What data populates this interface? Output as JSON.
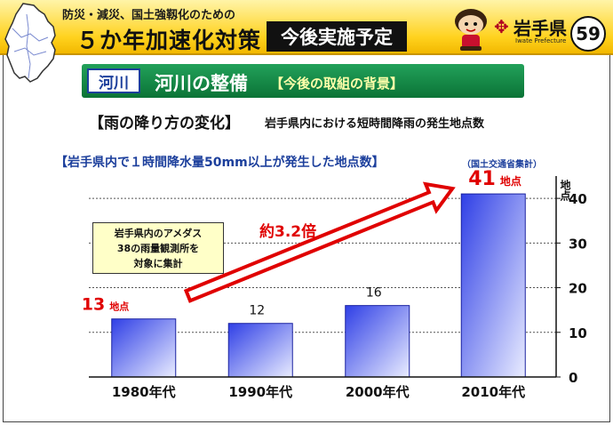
{
  "header": {
    "subtitle": "防災・減災、国土強靱化のための",
    "title": "５か年加速化対策",
    "badge": "今後実施予定",
    "pref_name": "岩手県",
    "pref_en": "Iwate Prefecture",
    "page_number": "59"
  },
  "section": {
    "tag": "河川",
    "title": "河川の整備",
    "subtitle": "【今後の取組の背景】"
  },
  "heading": {
    "main": "【雨の降り方の変化】",
    "sub": "岩手県内における短時間降雨の発生地点数"
  },
  "note": {
    "lines": [
      "岩手県内のアメダス",
      "38の雨量観測所を",
      "対象に集計"
    ]
  },
  "colors": {
    "bar": "#2f3fe6",
    "bar_light": "#e9ecff",
    "accent_red": "#e00000",
    "title_blue": "#1c3f9c",
    "header_yellow": "#ffd21e",
    "section_green": "#0b7336"
  },
  "chart_data": {
    "type": "bar",
    "title": "【岩手県内で１時間降水量50mm以上が発生した地点数】",
    "source": "（国土交通省集計）",
    "categories": [
      "1980年代",
      "1990年代",
      "2000年代",
      "2010年代"
    ],
    "values": [
      13,
      12,
      16,
      41
    ],
    "ylabel": "地点",
    "ylim": [
      0,
      45
    ],
    "yticks": [
      0,
      10,
      20,
      30,
      40
    ],
    "grid": true,
    "legend": "none",
    "data_labels": [
      {
        "value": "13",
        "unit": "地点",
        "style": "red"
      },
      {
        "value": "12",
        "unit": "",
        "style": "plain"
      },
      {
        "value": "16",
        "unit": "",
        "style": "plain"
      },
      {
        "value": "41",
        "unit": "地点",
        "style": "red"
      }
    ],
    "annotation": "約3.2倍"
  }
}
